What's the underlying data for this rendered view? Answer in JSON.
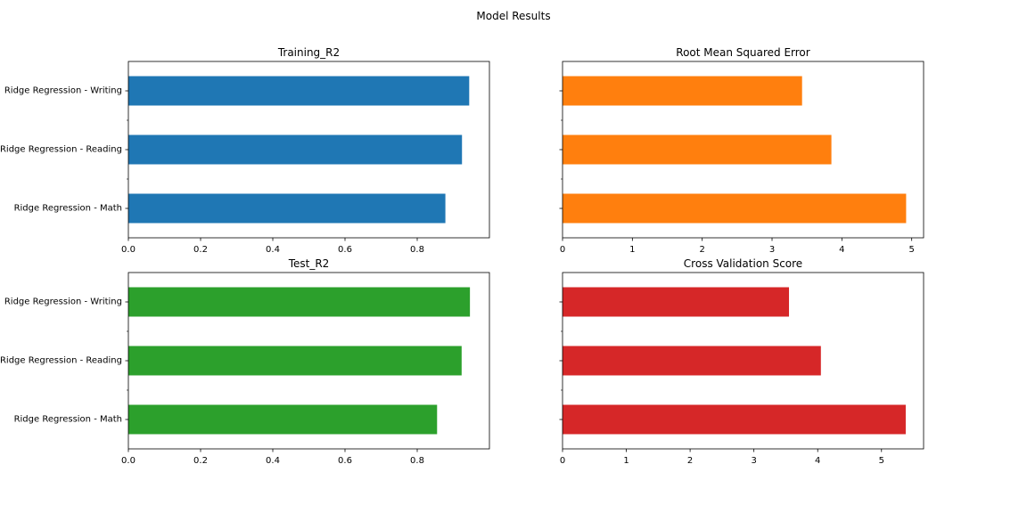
{
  "figure": {
    "suptitle": "Model Results"
  },
  "chart_data": [
    {
      "type": "bar",
      "orientation": "horizontal",
      "title": "Training_R2",
      "categories": [
        "Ridge Regression - Math",
        "Ridge Regression - Reading",
        "Ridge Regression - Writing"
      ],
      "values": [
        0.878,
        0.924,
        0.944
      ],
      "xlim": [
        0,
        1.0
      ],
      "xticks": [
        "0.0",
        "0.2",
        "0.4",
        "0.6",
        "0.8"
      ],
      "color": "#1f77b4",
      "show_ylabels": true,
      "grid": false
    },
    {
      "type": "bar",
      "orientation": "horizontal",
      "title": "Root Mean Squared Error",
      "categories": [
        "Ridge Regression - Math",
        "Ridge Regression - Reading",
        "Ridge Regression - Writing"
      ],
      "values": [
        4.92,
        3.85,
        3.43
      ],
      "xlim": [
        0,
        5.17
      ],
      "xticks": [
        "0",
        "1",
        "2",
        "3",
        "4",
        "5"
      ],
      "color": "#ff7f0e",
      "show_ylabels": false,
      "grid": false
    },
    {
      "type": "bar",
      "orientation": "horizontal",
      "title": "Test_R2",
      "categories": [
        "Ridge Regression - Math",
        "Ridge Regression - Reading",
        "Ridge Regression - Writing"
      ],
      "values": [
        0.855,
        0.923,
        0.946
      ],
      "xlim": [
        0,
        1.0
      ],
      "xticks": [
        "0.0",
        "0.2",
        "0.4",
        "0.6",
        "0.8"
      ],
      "color": "#2ca02c",
      "show_ylabels": true,
      "grid": false
    },
    {
      "type": "bar",
      "orientation": "horizontal",
      "title": "Cross Validation Score",
      "categories": [
        "Ridge Regression - Math",
        "Ridge Regression - Reading",
        "Ridge Regression - Writing"
      ],
      "values": [
        5.38,
        4.05,
        3.55
      ],
      "xlim": [
        0,
        5.66
      ],
      "xticks": [
        "0",
        "1",
        "2",
        "3",
        "4",
        "5"
      ],
      "color": "#d62728",
      "show_ylabels": false,
      "grid": false
    }
  ]
}
